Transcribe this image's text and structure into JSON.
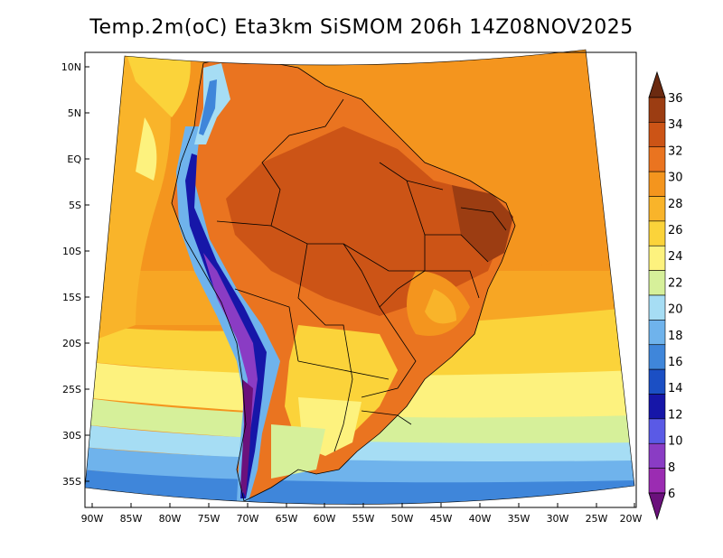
{
  "title": "Temp.2m(oC) Eta3km SiSMOM 206h 14Z08NOV2025",
  "map": {
    "variable": "2 m air temperature",
    "units": "oC",
    "lat_ticks": [
      "10N",
      "5N",
      "EQ",
      "5S",
      "10S",
      "15S",
      "20S",
      "25S",
      "30S",
      "35S"
    ],
    "lon_ticks": [
      "90W",
      "85W",
      "80W",
      "75W",
      "70W",
      "65W",
      "60W",
      "55W",
      "50W",
      "45W",
      "40W",
      "35W",
      "30W",
      "25W",
      "20W"
    ]
  },
  "colorbar": {
    "levels": [
      "36",
      "34",
      "32",
      "30",
      "28",
      "26",
      "24",
      "22",
      "20",
      "18",
      "16",
      "14",
      "12",
      "10",
      "8",
      "6"
    ],
    "colors": [
      "#6b2a10",
      "#9c3d12",
      "#cc5416",
      "#ea7420",
      "#f4951e",
      "#f9b42a",
      "#fbd33a",
      "#fdf27e",
      "#d6f09a",
      "#a6ddf4",
      "#6fb3ec",
      "#3f86da",
      "#1b4fc4",
      "#1616a8",
      "#5a5ae6",
      "#8a3cc4",
      "#9b2cb2",
      "#6b117c"
    ]
  }
}
